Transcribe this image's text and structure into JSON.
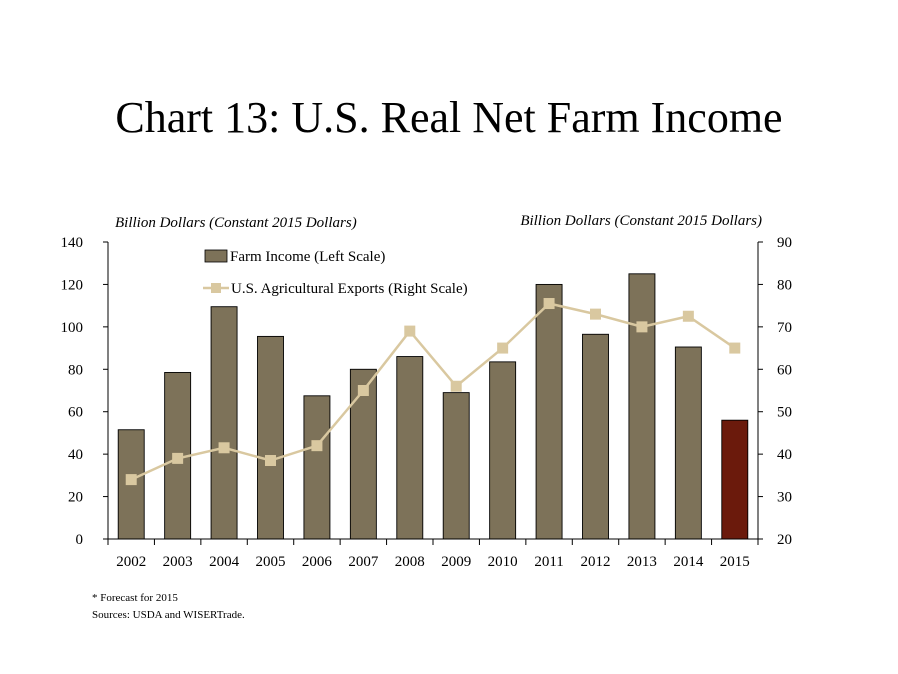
{
  "title": "Chart 13: U.S. Real Net Farm Income",
  "footnote": "* Forecast for 2015",
  "sources": "Sources: USDA and WISERTrade.",
  "colors": {
    "bar": "#7d7259",
    "bar_forecast": "#6b1a0c",
    "line": "#d9c8a0",
    "axis": "#000000"
  },
  "chart_data": {
    "type": "bar",
    "categories": [
      "2002",
      "2003",
      "2004",
      "2005",
      "2006",
      "2007",
      "2008",
      "2009",
      "2010",
      "2011",
      "2012",
      "2013",
      "2014",
      "2015"
    ],
    "series": [
      {
        "name": "Farm Income (Left Scale)",
        "type": "bar",
        "axis": "left",
        "values": [
          51.5,
          78.5,
          109.5,
          95.5,
          67.5,
          80,
          86,
          69,
          83.5,
          120,
          96.5,
          125,
          90.5,
          56
        ]
      },
      {
        "name": "U.S. Agricultural Exports (Right Scale)",
        "type": "line",
        "axis": "right",
        "values": [
          34,
          39,
          41.5,
          38.5,
          42,
          55,
          69,
          56,
          65,
          75.5,
          73,
          70,
          72.5,
          65
        ]
      }
    ],
    "ylabel_left": "Billion Dollars (Constant 2015 Dollars)",
    "ylabel_right": "Billion Dollars (Constant 2015 Dollars)",
    "ylim_left": [
      0,
      140
    ],
    "ylim_right": [
      20,
      90
    ],
    "yticks_left": [
      "0",
      "20",
      "40",
      "60",
      "80",
      "100",
      "120",
      "140"
    ],
    "yticks_right": [
      "20",
      "30",
      "40",
      "50",
      "60",
      "70",
      "80",
      "90"
    ],
    "legend_position": "top-left",
    "grid": false,
    "forecast_category": "2015"
  }
}
